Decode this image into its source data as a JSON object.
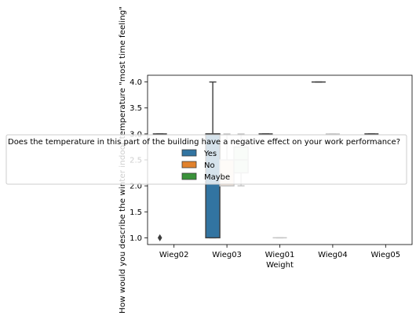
{
  "chart_data": {
    "type": "box",
    "xlabel": "Weight",
    "ylabel": "How would you describe the winter indoor temperature \"most time feeling\"",
    "categories": [
      "Wieg02",
      "Wieg03",
      "Wieg01",
      "Wieg04",
      "Wieg05"
    ],
    "yticks": [
      "1.0",
      "1.5",
      "2.0",
      "2.5",
      "3.0",
      "3.5",
      "4.0"
    ],
    "ylim": [
      0.87,
      4.13
    ],
    "grid": false,
    "legend": {
      "title": "Does the temperature in this part of the building have a negative effect on your work performance?",
      "placement": "center",
      "entries": [
        "Yes",
        "No",
        "Maybe"
      ]
    },
    "colors": {
      "Yes": "#3274a1",
      "No": "#e1812c",
      "Maybe": "#3a923a"
    },
    "series": [
      {
        "name": "Yes",
        "boxes": [
          {
            "category": "Wieg02",
            "q1": 3,
            "median": 3,
            "q3": 3,
            "whislo": 3,
            "whishi": 3,
            "fliers": [
              1
            ]
          },
          {
            "category": "Wieg03",
            "q1": 1,
            "median": 3,
            "q3": 3,
            "whislo": 1,
            "whishi": 4,
            "fliers": []
          },
          {
            "category": "Wieg01",
            "q1": 3,
            "median": 3,
            "q3": 3,
            "whislo": 3,
            "whishi": 3,
            "fliers": []
          },
          {
            "category": "Wieg04",
            "q1": 4,
            "median": 4,
            "q3": 4,
            "whislo": 4,
            "whishi": 4,
            "fliers": []
          },
          {
            "category": "Wieg05",
            "q1": 3,
            "median": 3,
            "q3": 3,
            "whislo": 3,
            "whishi": 3,
            "fliers": []
          }
        ]
      },
      {
        "name": "No",
        "boxes": [
          {
            "category": "Wieg03",
            "q1": 2,
            "median": 2,
            "q3": 2.5,
            "whislo": 2,
            "whishi": 3,
            "fliers": []
          },
          {
            "category": "Wieg01",
            "q1": 1,
            "median": 1,
            "q3": 1,
            "whislo": 1,
            "whishi": 1,
            "fliers": []
          },
          {
            "category": "Wieg04",
            "q1": 3,
            "median": 3,
            "q3": 3,
            "whislo": 3,
            "whishi": 3,
            "fliers": []
          }
        ]
      },
      {
        "name": "Maybe",
        "boxes": [
          {
            "category": "Wieg03",
            "q1": 2.25,
            "median": 2.5,
            "q3": 2.75,
            "whislo": 2,
            "whishi": 3,
            "fliers": []
          }
        ]
      }
    ]
  }
}
